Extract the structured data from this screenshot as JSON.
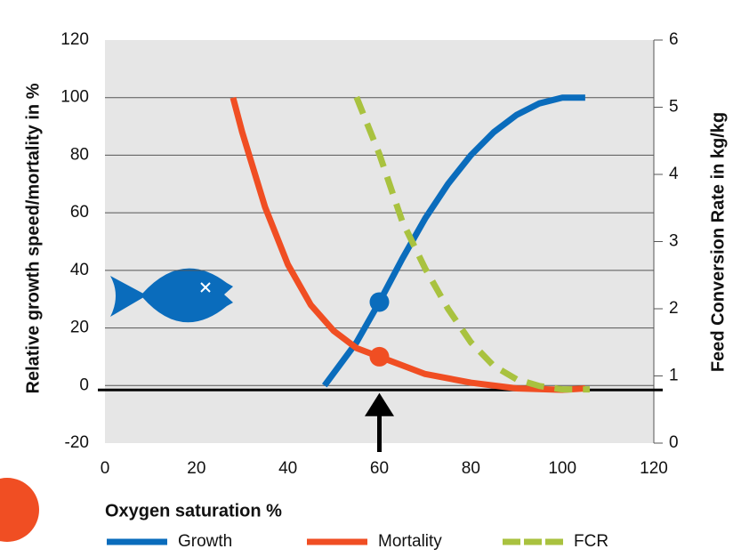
{
  "chart_data": {
    "type": "line",
    "xlabel": "Oxygen saturation %",
    "ylabel": "Relative growth speed/mortality in %",
    "y2label": "Feed Conversion Rate in kg/kg",
    "xlim": [
      0,
      120
    ],
    "xticks": [
      0,
      20,
      40,
      60,
      80,
      100,
      120
    ],
    "ylim": [
      -20,
      120
    ],
    "yticks": [
      -20,
      0,
      20,
      40,
      60,
      80,
      100,
      120
    ],
    "y2lim": [
      0,
      6
    ],
    "y2ticks": [
      0,
      1,
      2,
      3,
      4,
      5,
      6
    ],
    "grid": true,
    "series": [
      {
        "name": "Growth",
        "color": "#0a6cbc",
        "dash": false,
        "x": [
          48,
          55,
          60,
          65,
          70,
          75,
          80,
          85,
          90,
          95,
          100,
          105
        ],
        "values": [
          0,
          15,
          29,
          44,
          58,
          70,
          80,
          88,
          94,
          98,
          100,
          100
        ]
      },
      {
        "name": "Mortality",
        "color": "#f04e23",
        "dash": false,
        "x": [
          28,
          30,
          35,
          40,
          45,
          50,
          55,
          60,
          65,
          70,
          80,
          90,
          100,
          105
        ],
        "values": [
          100,
          88,
          62,
          42,
          28,
          19,
          13,
          10,
          7,
          4,
          1,
          -1,
          -1.5,
          -1
        ]
      },
      {
        "name": "FCR",
        "color": "#a9c23f",
        "dash": true,
        "axis": "y2",
        "x": [
          55,
          60,
          65,
          70,
          75,
          80,
          85,
          90,
          95,
          100,
          106
        ],
        "values": [
          5.15,
          4.3,
          3.3,
          2.6,
          2.0,
          1.5,
          1.15,
          0.95,
          0.85,
          0.8,
          0.8
        ]
      }
    ],
    "highlights": [
      {
        "x": 60,
        "y": 29,
        "color": "#0a6cbc"
      },
      {
        "x": 60,
        "y": 10,
        "color": "#f04e23"
      }
    ]
  }
}
